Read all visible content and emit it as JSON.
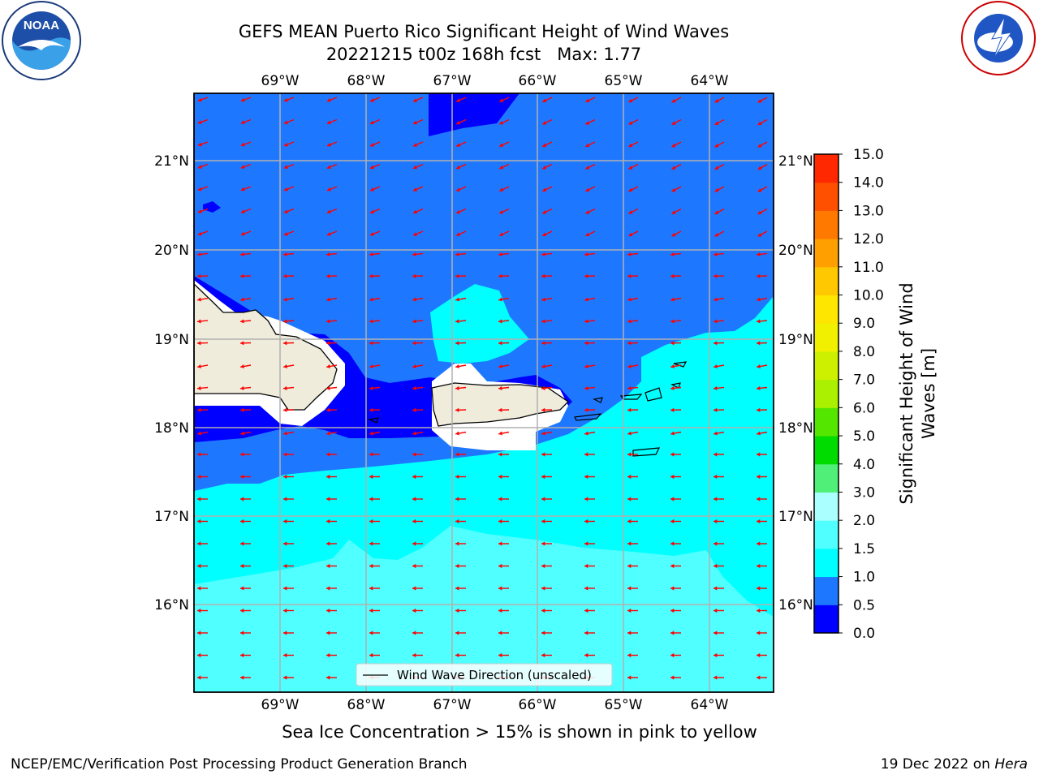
{
  "title": {
    "line1": "GEFS MEAN Puerto Rico Significant Height of Wind Waves",
    "line2": "20221215 t00z 168h fcst   Max: 1.77"
  },
  "subtitle": "Sea Ice Concentration > 15% is shown in pink to yellow",
  "footer": {
    "left": "NCEP/EMC/Verification Post Processing Product Generation Branch",
    "right_date": "19 Dec 2022 on ",
    "right_host": "Hera"
  },
  "logos": {
    "noaa": {
      "text": "NOAA",
      "ring_text": "NATIONAL OCEANIC AND ATMOSPHERIC ADMINISTRATION",
      "ring_text_bottom": "U.S. DEPARTMENT OF COMMERCE"
    },
    "nws": {
      "ring_text": "NATIONAL WEATHER SERVICE"
    }
  },
  "map": {
    "lon_labels": [
      "69°W",
      "68°W",
      "67°W",
      "66°W",
      "65°W",
      "64°W"
    ],
    "lat_labels": [
      "21°N",
      "20°N",
      "19°N",
      "18°N",
      "17°N",
      "16°N"
    ],
    "lon_extent": [
      -70.0,
      -63.25
    ],
    "lat_extent": [
      15.0,
      21.75
    ],
    "land_color": "#efecdc",
    "arrow_color": "#ff0000",
    "legend_label": "Wind Wave Direction (unscaled)"
  },
  "colorbar": {
    "label_line1": "Significant Height of Wind",
    "label_line2": "Waves [m]",
    "ticks": [
      "0.0",
      "0.5",
      "1.0",
      "1.5",
      "2.0",
      "3.0",
      "4.0",
      "5.0",
      "6.0",
      "7.0",
      "8.0",
      "9.0",
      "10.0",
      "11.0",
      "12.0",
      "13.0",
      "14.0",
      "15.0"
    ],
    "colors": [
      "#0000ff",
      "#1e78ff",
      "#00ffff",
      "#50ffff",
      "#aaffff",
      "#50f078",
      "#00dc00",
      "#55e600",
      "#aaf000",
      "#ccf000",
      "#f0f000",
      "#ffe600",
      "#ffc800",
      "#ffa000",
      "#ff7800",
      "#ff5000",
      "#ff2800",
      "#ff0000"
    ]
  },
  "chart_data": {
    "type": "heatmap",
    "title": "GEFS MEAN Puerto Rico Significant Height of Wind Waves",
    "field": "Significant Height of Wind Waves [m]",
    "max": 1.77,
    "levels": [
      0.0,
      0.5,
      1.0,
      1.5,
      2.0,
      3.0,
      4.0,
      5.0,
      6.0,
      7.0,
      8.0,
      9.0,
      10.0,
      11.0,
      12.0,
      13.0,
      14.0,
      15.0
    ],
    "lon_range": [
      -70.0,
      -63.25
    ],
    "lat_range": [
      15.0,
      21.75
    ],
    "grid": true
  }
}
